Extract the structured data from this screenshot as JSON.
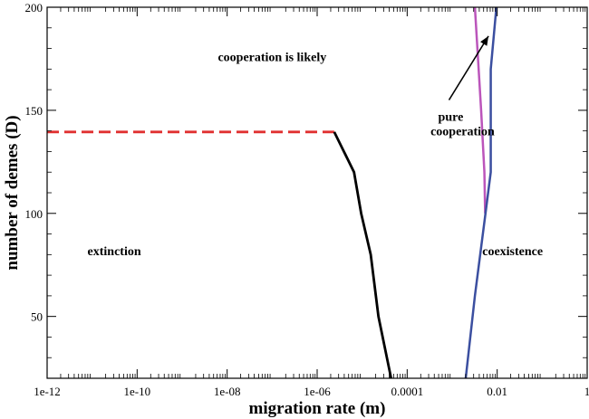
{
  "chart_data": {
    "type": "line",
    "xlabel": "migration rate (m)",
    "ylabel": "number of demes (D)",
    "xscale": "log",
    "xlim": [
      1e-12,
      1
    ],
    "ylim": [
      20,
      200
    ],
    "grid": false,
    "x_ticks": [
      {
        "value": 1e-12,
        "label": "1e-12"
      },
      {
        "value": 1e-10,
        "label": "1e-10"
      },
      {
        "value": 1e-08,
        "label": "1e-08"
      },
      {
        "value": 1e-06,
        "label": "1e-06"
      },
      {
        "value": 0.0001,
        "label": "0.0001"
      },
      {
        "value": 0.01,
        "label": "0.01"
      },
      {
        "value": 1,
        "label": "1"
      }
    ],
    "y_ticks": [
      {
        "value": 50,
        "label": "50"
      },
      {
        "value": 100,
        "label": "100"
      },
      {
        "value": 150,
        "label": "150"
      },
      {
        "value": 200,
        "label": "200"
      }
    ],
    "series": [
      {
        "color": "#e03030",
        "dash": true,
        "width": 2.8,
        "points": [
          [
            1e-12,
            139.5
          ],
          [
            2.4e-06,
            139.5
          ]
        ]
      },
      {
        "color": "#000000",
        "dash": false,
        "width": 2.8,
        "points": [
          [
            2.4e-06,
            139.5
          ],
          [
            6.6e-06,
            120
          ],
          [
            9.5e-06,
            100
          ],
          [
            1.55e-05,
            80
          ],
          [
            2.3e-05,
            50
          ],
          [
            4.4e-05,
            20
          ]
        ]
      },
      {
        "color": "#bb55bb",
        "dash": false,
        "width": 2.5,
        "points": [
          [
            0.0032,
            200
          ],
          [
            0.0044,
            150
          ],
          [
            0.0052,
            120
          ],
          [
            0.0054,
            100
          ]
        ]
      },
      {
        "color": "#3b4fa0",
        "dash": false,
        "width": 2.5,
        "points": [
          [
            0.0096,
            200
          ],
          [
            0.0072,
            170
          ],
          [
            0.0072,
            150
          ],
          [
            0.0072,
            120
          ],
          [
            0.0055,
            100
          ],
          [
            0.0032,
            60
          ],
          [
            0.002,
            20
          ]
        ]
      }
    ],
    "annotations": [
      {
        "text": "cooperation is likely",
        "x": 1e-07,
        "y": 176
      },
      {
        "text": "extinction",
        "x": 3.1e-11,
        "y": 82
      },
      {
        "text": "pure",
        "x": 0.00093,
        "y": 147
      },
      {
        "text": "cooperation",
        "x": 0.0017,
        "y": 140
      },
      {
        "text": "coexistence",
        "x": 0.022,
        "y": 82
      }
    ],
    "arrow": {
      "from": [
        0.00085,
        155
      ],
      "to": [
        0.0064,
        186
      ]
    }
  }
}
